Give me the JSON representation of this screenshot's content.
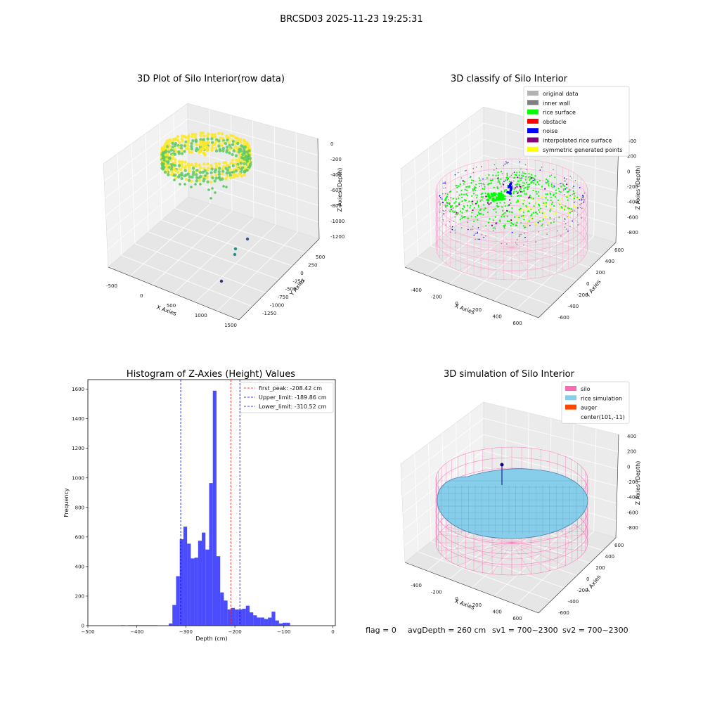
{
  "figure_title": "BRCSD03 2025-11-23 19:25:31",
  "footer": {
    "flag": "flag = 0",
    "avg_depth": "avgDepth = 260 cm",
    "sv1": "sv1 = 700~2300",
    "sv2": "sv2 = 700~2300"
  },
  "chart_data": [
    {
      "type": "scatter",
      "title": "3D Plot of Silo Interior(row data)",
      "xlabel": "X Axies",
      "ylabel": "Y Axies",
      "zlabel": "Z Axies (Depth)",
      "x_ticks": [
        "-500",
        "0",
        "500",
        "1000",
        "1500"
      ],
      "y_ticks": [
        "500",
        "250",
        "0",
        "-250",
        "-500",
        "-750",
        "-1000",
        "-1250"
      ],
      "z_ticks": [
        "0",
        "-200",
        "-400",
        "-600",
        "-800",
        "-1000",
        "-1200"
      ],
      "xlim": [
        -700,
        1550
      ],
      "ylim": [
        -1350,
        650
      ],
      "zlim": [
        -1300,
        50
      ],
      "colormap": [
        "#440154",
        "#21918c",
        "#5ec962",
        "#fde725"
      ],
      "note_ring": {
        "center": [
          150,
          0
        ],
        "radius": 470,
        "z_top": -150,
        "z_bottom": -420
      },
      "outliers": [
        {
          "x": 1150,
          "y": 100,
          "z": -1040,
          "color": "#3b528b"
        },
        {
          "x": 1050,
          "y": 170,
          "z": -1060,
          "color": "#21918c"
        },
        {
          "x": 1020,
          "y": 180,
          "z": -1000,
          "color": "#21918c"
        },
        {
          "x": 980,
          "y": 40,
          "z": -1240,
          "color": "#482878"
        }
      ]
    },
    {
      "type": "scatter",
      "title": "3D classify of Silo Interior",
      "xlabel": "X Axies",
      "ylabel": "Y Axies",
      "zlabel": "Z Axies (Depth)",
      "x_ticks": [
        "-400",
        "-200",
        "0",
        "200",
        "400",
        "600"
      ],
      "y_ticks": [
        "600",
        "400",
        "200",
        "0",
        "-200",
        "-400",
        "-600"
      ],
      "z_ticks": [
        "400",
        "200",
        "0",
        "-200",
        "-400",
        "-600",
        "-800"
      ],
      "legend": [
        {
          "label": "original data",
          "color": "#b3b3b3"
        },
        {
          "label": "inner wall",
          "color": "#808080"
        },
        {
          "label": "rice surface",
          "color": "#00ff00"
        },
        {
          "label": "obstacle",
          "color": "#ff0000"
        },
        {
          "label": "noise",
          "color": "#0000ff"
        },
        {
          "label": "interpolated rice surface",
          "color": "#800080"
        },
        {
          "label": "symmetric generated points",
          "color": "#ffff00"
        }
      ]
    },
    {
      "type": "bar",
      "title": "Histogram of Z-Axies (Height) Values",
      "xlabel": "Depth (cm)",
      "ylabel": "Frequency",
      "xlim": [
        -500,
        5
      ],
      "ylim": [
        0,
        1665
      ],
      "x_ticks": [
        -500,
        -400,
        -300,
        -200,
        -100,
        0
      ],
      "y_ticks": [
        0,
        200,
        400,
        600,
        800,
        1000,
        1200,
        1400,
        1600
      ],
      "bar_color": "#0000ff",
      "bin_width": 7.5,
      "bins_start": [
        -470,
        -462.5,
        -455,
        -447.5,
        -440,
        -432.5,
        -425,
        -417.5,
        -410,
        -402.5,
        -395,
        -387.5,
        -380,
        -372.5,
        -365,
        -357.5,
        -350,
        -342.5,
        -335,
        -327.5,
        -320,
        -312.5,
        -305,
        -297.5,
        -290,
        -282.5,
        -275,
        -267.5,
        -260,
        -252.5,
        -245,
        -237.5,
        -230,
        -222.5,
        -215,
        -207.5,
        -200,
        -192.5,
        -185,
        -177.5,
        -170,
        -162.5,
        -155,
        -147.5,
        -140,
        -132.5,
        -125,
        -117.5,
        -110,
        -102.5,
        -95,
        -87.5,
        -80,
        -72.5,
        -65,
        -57.5,
        -50,
        -42.5,
        -35,
        -27.5,
        -20
      ],
      "values": [
        0,
        0,
        0,
        0,
        0,
        3,
        0,
        3,
        3,
        3,
        3,
        3,
        3,
        3,
        3,
        0,
        0,
        0,
        15,
        140,
        335,
        585,
        670,
        555,
        455,
        460,
        575,
        630,
        515,
        965,
        1590,
        470,
        225,
        170,
        110,
        120,
        110,
        110,
        115,
        135,
        90,
        70,
        55,
        55,
        45,
        55,
        95,
        35,
        15,
        20,
        20,
        0,
        0,
        0,
        0,
        0,
        0,
        0,
        0,
        0,
        0
      ],
      "vlines": [
        {
          "x": -208.42,
          "color": "#ff0000",
          "label": "first_peak: -208.42 cm"
        },
        {
          "x": -189.86,
          "color": "#0000ff",
          "label": "Upper_limit: -189.86 cm"
        },
        {
          "x": -310.52,
          "color": "#0000ff",
          "label": "Lower_limit: -310.52 cm"
        }
      ]
    },
    {
      "type": "scatter",
      "title": "3D simulation of Silo Interior",
      "xlabel": "X Axies",
      "ylabel": "Y Axies",
      "zlabel": "Z Axies (Depth)",
      "x_ticks": [
        "-400",
        "-200",
        "0",
        "200",
        "400",
        "600"
      ],
      "y_ticks": [
        "600",
        "400",
        "200",
        "0",
        "-200",
        "-400",
        "-600"
      ],
      "z_ticks": [
        "400",
        "200",
        "0",
        "-200",
        "-400",
        "-600",
        "-800"
      ],
      "legend": [
        {
          "label": "silo",
          "color": "#ff69b4"
        },
        {
          "label": "rice simulation",
          "color": "#87ceeb"
        },
        {
          "label": "auger",
          "color": "#ff4500"
        },
        {
          "label": "center(101,-11)",
          "color": ""
        }
      ]
    }
  ]
}
